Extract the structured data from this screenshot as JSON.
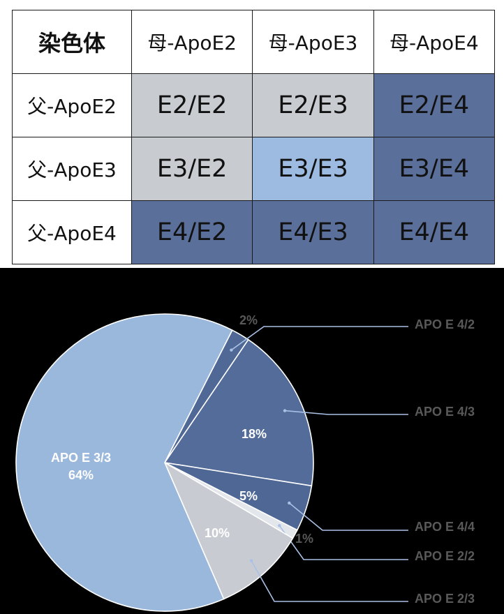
{
  "table": {
    "corner": "染色体",
    "columns": [
      "母-ApoE2",
      "母-ApoE3",
      "母-ApoE4"
    ],
    "rows": [
      {
        "label": "父-ApoE2",
        "cells": [
          "E2/E2",
          "E2/E3",
          "E2/E4"
        ],
        "fills": [
          "#c8cbd0",
          "#c8cbd0",
          "#5a6f99"
        ]
      },
      {
        "label": "父-ApoE3",
        "cells": [
          "E3/E2",
          "E3/E3",
          "E3/E4"
        ],
        "fills": [
          "#c8cbd0",
          "#9dbbe0",
          "#5a6f99"
        ]
      },
      {
        "label": "父-ApoE4",
        "cells": [
          "E4/E2",
          "E4/E3",
          "E4/E4"
        ],
        "fills": [
          "#5a6f99",
          "#5a6f99",
          "#5a6f99"
        ]
      }
    ]
  },
  "chart_data": {
    "type": "pie",
    "title": "",
    "slices": [
      {
        "name": "APO E 4/2",
        "value": 2,
        "label": "2%",
        "color": "#4f6896"
      },
      {
        "name": "APO E 4/3",
        "value": 18,
        "label": "18%",
        "color": "#536c99"
      },
      {
        "name": "APO E 4/4",
        "value": 5,
        "label": "5%",
        "color": "#4e6794"
      },
      {
        "name": "APO E 2/2",
        "value": 1,
        "label": "1%",
        "color": "#e3e6ea"
      },
      {
        "name": "APO E 2/3",
        "value": 10,
        "label": "10%",
        "color": "#c8ccd2"
      },
      {
        "name": "APO E 3/3",
        "value": 64,
        "label": "64%",
        "color": "#9ab7dc"
      }
    ],
    "inline_name_slice": "APO E 3/3",
    "legend_placement": "right",
    "leader_color": "#a9c1e6"
  }
}
